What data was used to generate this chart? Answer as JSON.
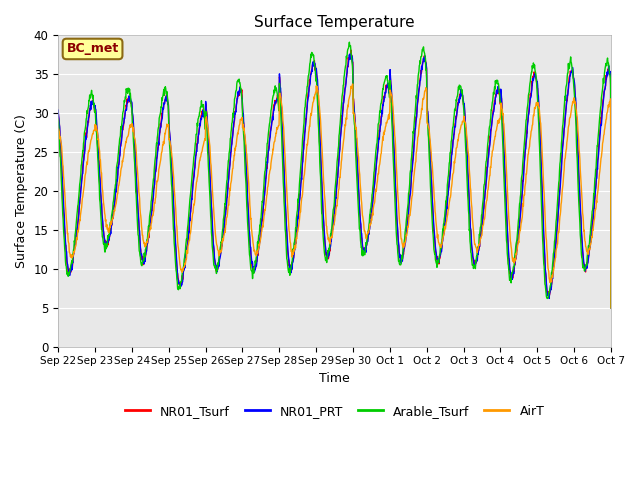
{
  "title": "Surface Temperature",
  "xlabel": "Time",
  "ylabel": "Surface Temperature (C)",
  "ylim": [
    0,
    40
  ],
  "background_color": "#e8e8e8",
  "grid_color": "white",
  "annotation_text": "BC_met",
  "annotation_bg": "#ffff99",
  "annotation_border": "#8b6914",
  "legend_labels": [
    "NR01_Tsurf",
    "NR01_PRT",
    "Arable_Tsurf",
    "AirT"
  ],
  "series_colors": [
    "#ff0000",
    "#0000ff",
    "#00cc00",
    "#ff9900"
  ],
  "xtick_labels": [
    "Sep 22",
    "Sep 23",
    "Sep 24",
    "Sep 25",
    "Sep 26",
    "Sep 27",
    "Sep 28",
    "Sep 29",
    "Sep 30",
    "Oct 1",
    "Oct 2",
    "Oct 3",
    "Oct 4",
    "Oct 5",
    "Oct 6",
    "Oct 7"
  ],
  "ytick_labels": [
    "0",
    "5",
    "10",
    "15",
    "20",
    "25",
    "30",
    "35",
    "40"
  ],
  "ytick_values": [
    0,
    5,
    10,
    15,
    20,
    25,
    30,
    35,
    40
  ],
  "n_days": 15,
  "n_per_day": 96,
  "peaks": [
    31.5,
    32.0,
    32.0,
    30.0,
    33.0,
    32.0,
    36.5,
    37.5,
    33.5,
    37.0,
    32.5,
    33.0,
    35.0,
    35.5,
    35.5
  ],
  "troughs": [
    9.5,
    13.0,
    11.0,
    7.8,
    10.0,
    9.8,
    10.0,
    11.5,
    12.3,
    11.0,
    11.0,
    10.5,
    9.0,
    6.5,
    10.0
  ],
  "peak_phase": 0.62,
  "trough_phase": 0.25
}
